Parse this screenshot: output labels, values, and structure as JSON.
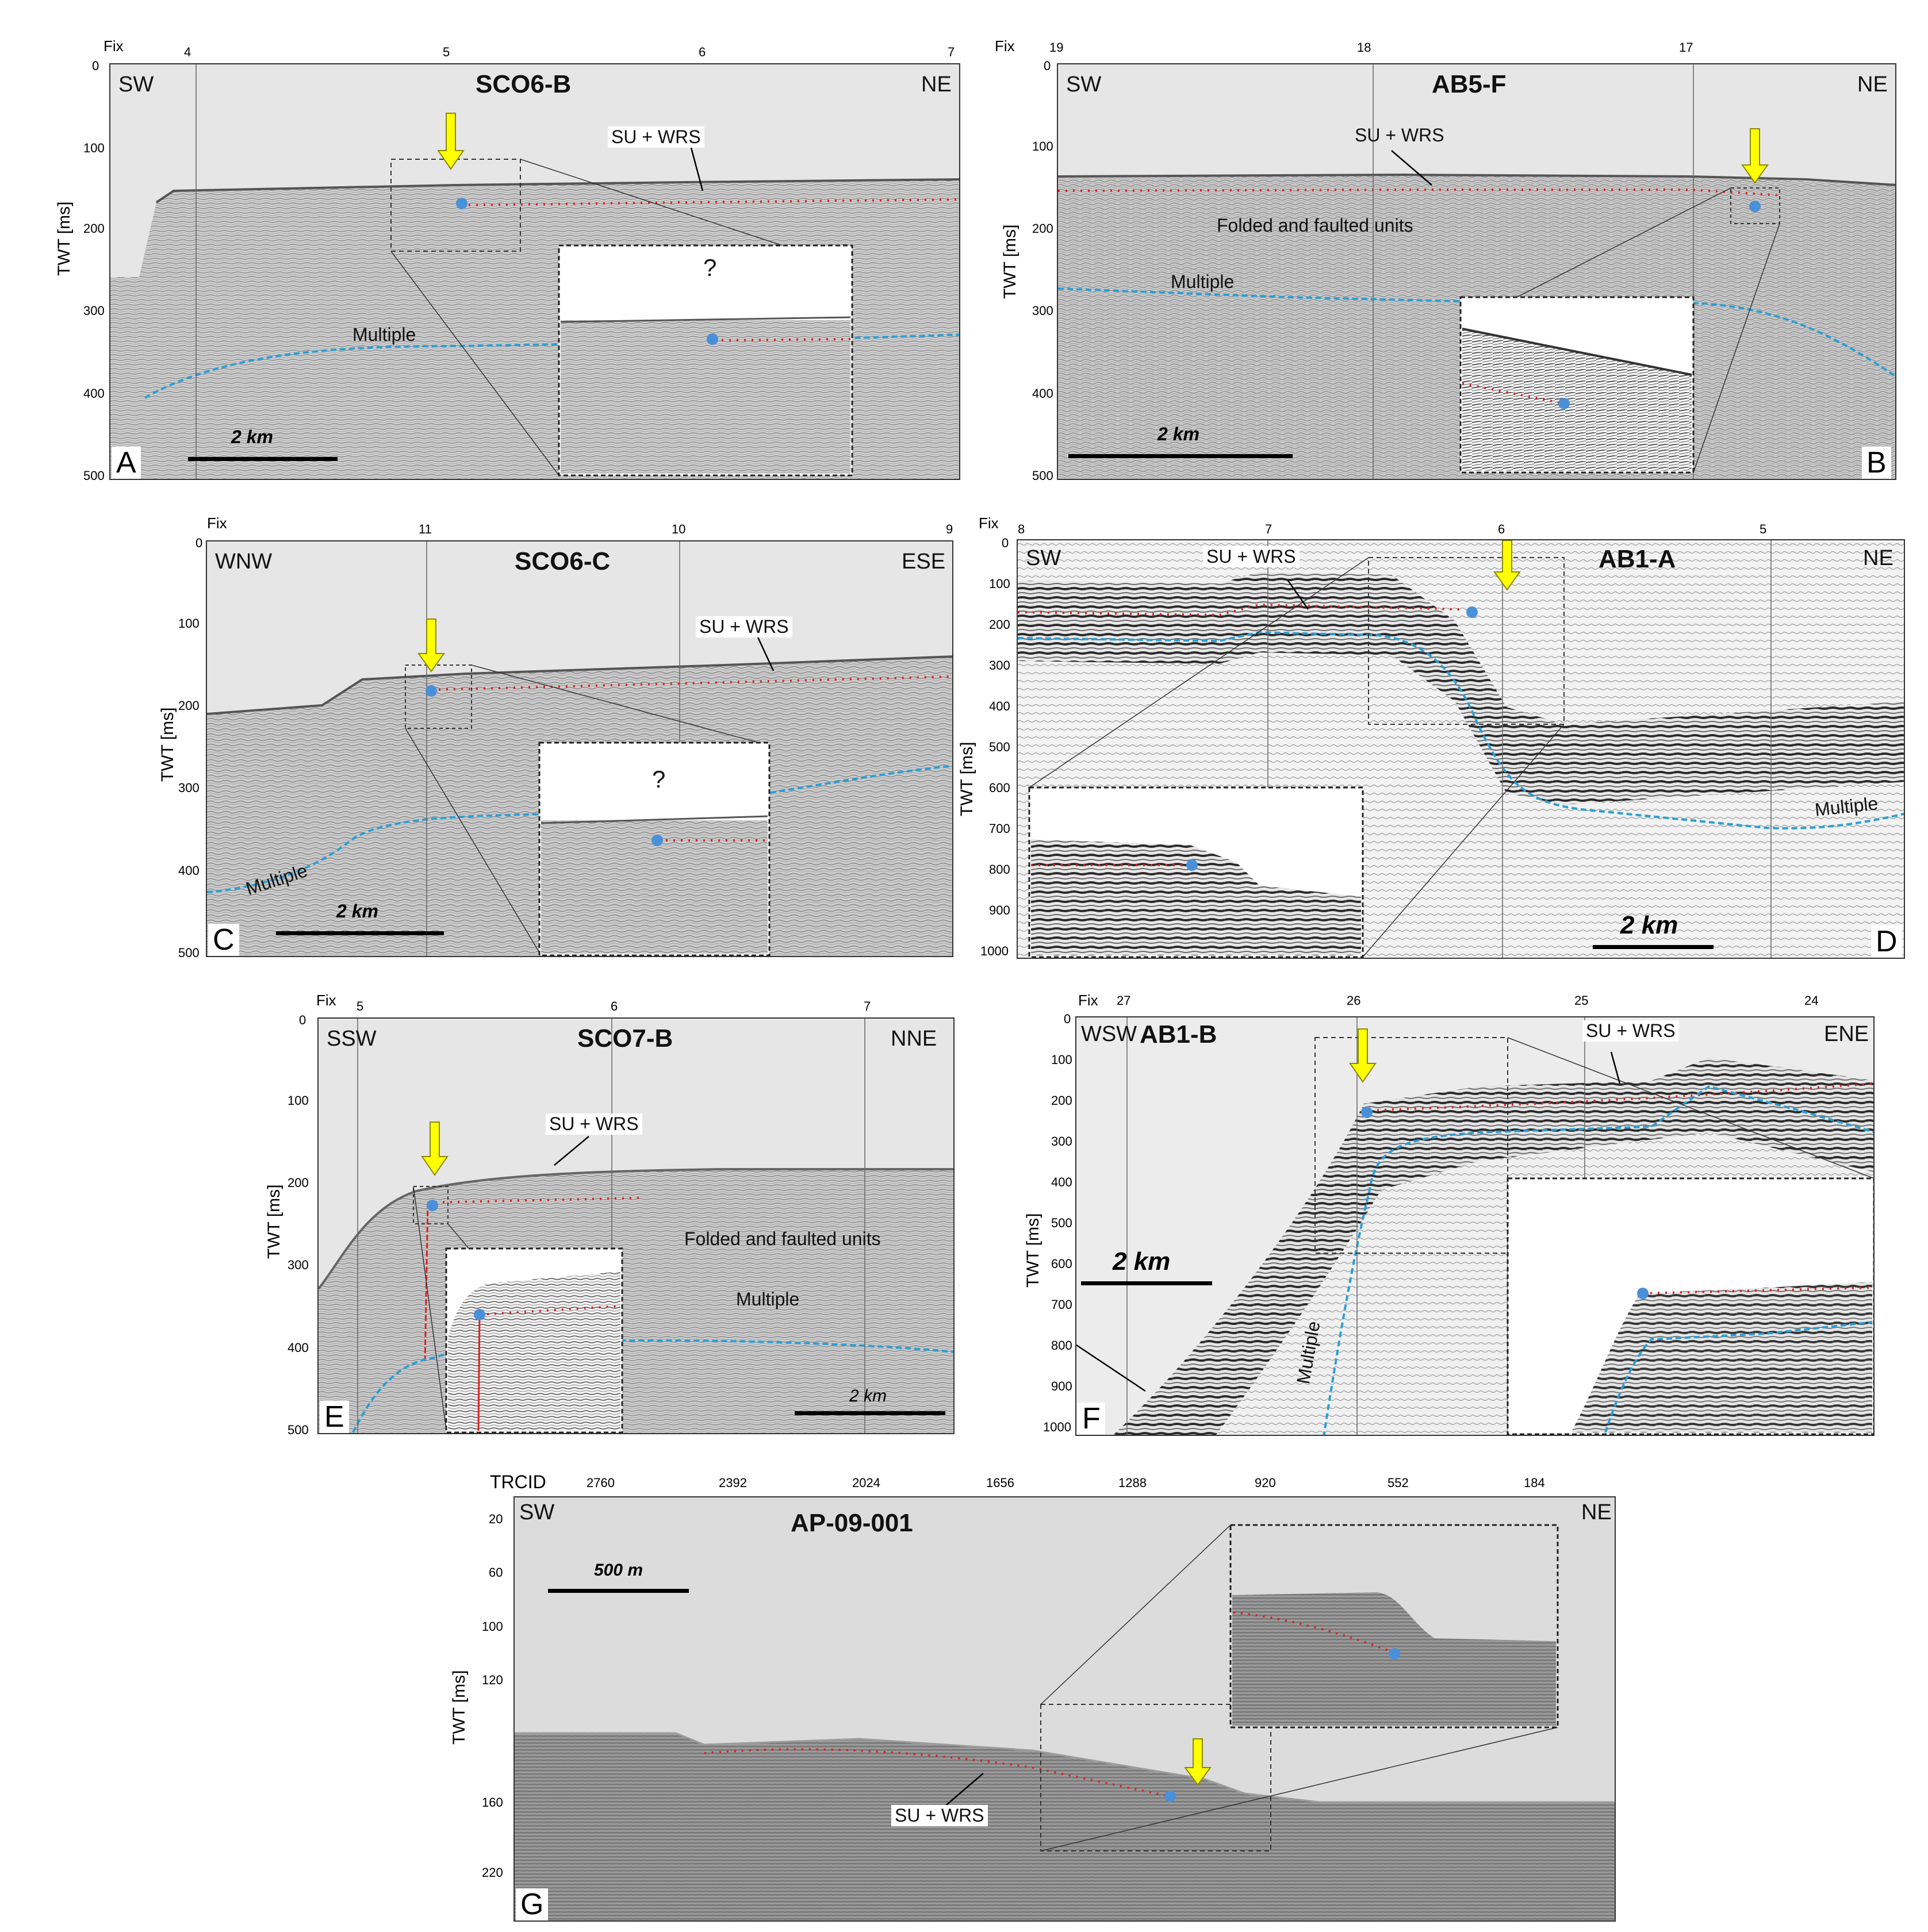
{
  "panels": {
    "A": {
      "letter": "A",
      "title": "SCO6-B",
      "left_dir": "SW",
      "right_dir": "NE",
      "fix_label": "Fix",
      "fix_ticks": [
        "4",
        "5",
        "6",
        "7"
      ],
      "y_title": "TWT [ms]",
      "y_ticks": [
        "0",
        "100",
        "200",
        "300",
        "400",
        "500"
      ],
      "annotations": {
        "su_wrs": "SU + WRS",
        "multiple": "Multiple",
        "question": "?"
      },
      "scale": "2 km"
    },
    "B": {
      "letter": "B",
      "title": "AB5-F",
      "left_dir": "SW",
      "right_dir": "NE",
      "fix_label": "Fix",
      "fix_ticks": [
        "19",
        "18",
        "17"
      ],
      "y_title": "TWT [ms]",
      "y_ticks": [
        "0",
        "100",
        "200",
        "300",
        "400",
        "500"
      ],
      "annotations": {
        "su_wrs": "SU + WRS",
        "multiple": "Multiple",
        "folded": "Folded and faulted units"
      },
      "scale": "2 km"
    },
    "C": {
      "letter": "C",
      "title": "SCO6-C",
      "left_dir": "WNW",
      "right_dir": "ESE",
      "fix_label": "Fix",
      "fix_ticks": [
        "11",
        "10",
        "9"
      ],
      "y_title": "TWT [ms]",
      "y_ticks": [
        "0",
        "100",
        "200",
        "300",
        "400",
        "500"
      ],
      "annotations": {
        "su_wrs": "SU + WRS",
        "multiple": "Multiple",
        "question": "?"
      },
      "scale": "2 km"
    },
    "D": {
      "letter": "D",
      "title": "AB1-A",
      "left_dir": "SW",
      "right_dir": "NE",
      "fix_label": "Fix",
      "fix_ticks": [
        "8",
        "7",
        "6",
        "5"
      ],
      "y_title": "TWT [ms]",
      "y_ticks": [
        "0",
        "100",
        "200",
        "300",
        "400",
        "500",
        "600",
        "700",
        "800",
        "900",
        "1000"
      ],
      "annotations": {
        "su_wrs": "SU + WRS",
        "multiple": "Multiple"
      },
      "scale": "2 km"
    },
    "E": {
      "letter": "E",
      "title": "SCO7-B",
      "left_dir": "SSW",
      "right_dir": "NNE",
      "fix_label": "Fix",
      "fix_ticks": [
        "5",
        "6",
        "7"
      ],
      "y_title": "TWT [ms]",
      "y_ticks": [
        "0",
        "100",
        "200",
        "300",
        "400",
        "500"
      ],
      "annotations": {
        "su_wrs": "SU + WRS",
        "multiple": "Multiple",
        "folded": "Folded and faulted units"
      },
      "scale": "2 km"
    },
    "F": {
      "letter": "F",
      "title": "AB1-B",
      "left_dir": "WSW",
      "right_dir": "ENE",
      "fix_label": "Fix",
      "fix_ticks": [
        "27",
        "26",
        "25",
        "24"
      ],
      "y_title": "TWT [ms]",
      "y_ticks": [
        "0",
        "100",
        "200",
        "300",
        "400",
        "500",
        "600",
        "700",
        "800",
        "900",
        "1000"
      ],
      "annotations": {
        "su_wrs": "SU + WRS",
        "multiple": "Multiple"
      },
      "scale": "2 km"
    },
    "G": {
      "letter": "G",
      "title": "AP-09-001",
      "left_dir": "SW",
      "right_dir": "NE",
      "fix_label": "TRCID",
      "fix_ticks": [
        "2760",
        "2392",
        "2024",
        "1656",
        "1288",
        "920",
        "552",
        "184"
      ],
      "y_title": "TWT [ms]",
      "y_ticks": [
        "20",
        "60",
        "100",
        "120",
        "160",
        "220"
      ],
      "annotations": {
        "su_wrs": "SU + WRS"
      },
      "scale": "500 m"
    }
  },
  "colors": {
    "profile_background": "#dcdcdc",
    "seismic_dark": "#555555",
    "su_wrs_dots": "#e02020",
    "multiple_line": "#2a9fd6",
    "marker_point": "#4a90d9",
    "arrow_fill": "#ffff00",
    "arrow_stroke": "#8a8a00"
  }
}
